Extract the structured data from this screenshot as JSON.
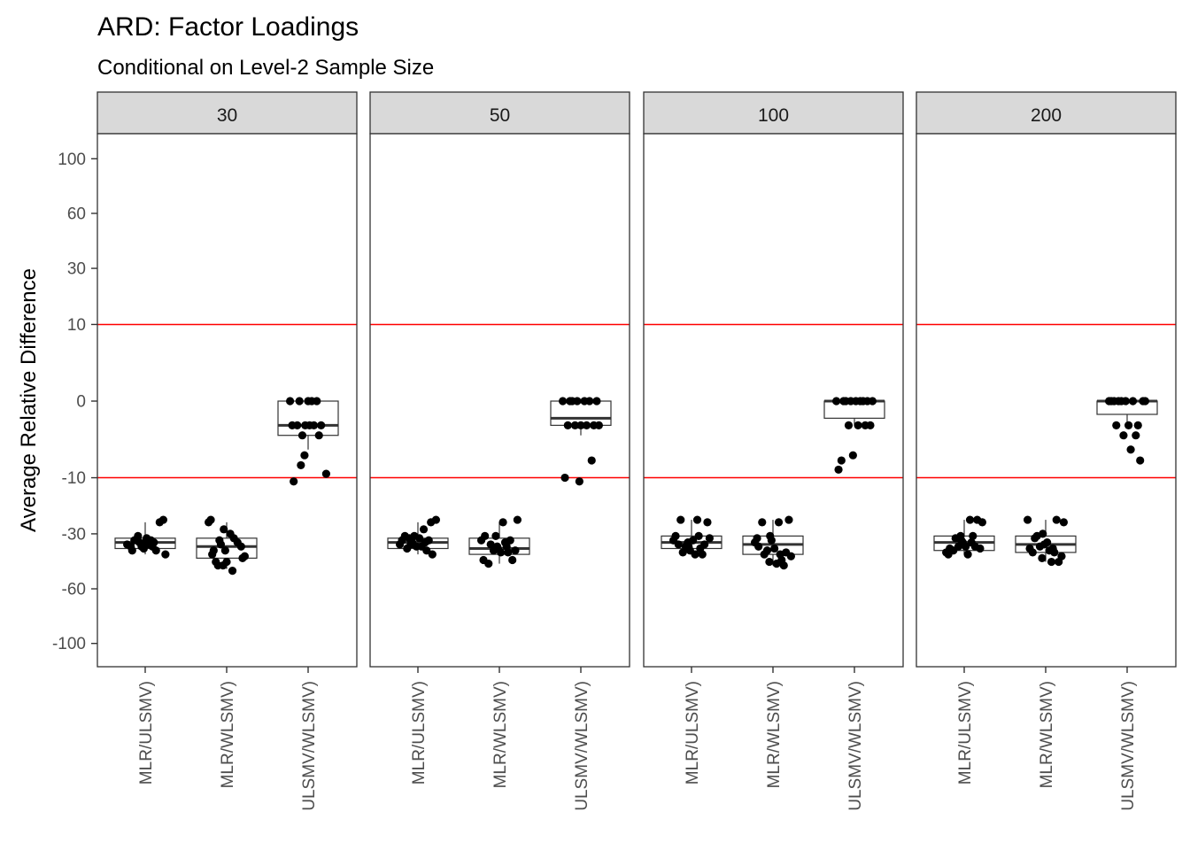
{
  "chart_data": {
    "type": "boxplot",
    "title": "ARD: Factor Loadings",
    "subtitle": "Conditional on Level-2 Sample Size",
    "ylabel": "Average Relative Difference",
    "xlabel": "",
    "y_transform": "signed_sqrt",
    "y_ticks": [
      -100,
      -60,
      -30,
      -10,
      0,
      10,
      30,
      60,
      100
    ],
    "y_tick_labels": [
      "-100",
      "-60",
      "-30",
      "-10",
      "0",
      "10",
      "30",
      "60",
      "100"
    ],
    "ylim": [
      -110,
      110
    ],
    "reference_lines": [
      {
        "y": 10,
        "color": "#ff0000"
      },
      {
        "y": -10,
        "color": "#ff0000"
      }
    ],
    "categories": [
      "MLR/ULSMV)",
      "MLR/WLSMV)",
      "ULSMV/WLSMV)"
    ],
    "facets": [
      {
        "label": "30",
        "boxes": [
          {
            "category": "MLR/ULSMV)",
            "q1": -37,
            "median": -34,
            "q3": -32,
            "whisker_low": -40,
            "whisker_high": -25,
            "points": [
              [
                0.75,
                -35
              ],
              [
                0.8,
                -36
              ],
              [
                0.85,
                -33
              ],
              [
                0.9,
                -31
              ],
              [
                0.92,
                -34
              ],
              [
                0.95,
                -36
              ],
              [
                0.98,
                -37
              ],
              [
                1.02,
                -32
              ],
              [
                1.05,
                -35
              ],
              [
                1.08,
                -33
              ],
              [
                1.1,
                -36
              ],
              [
                1.12,
                -34
              ],
              [
                1.15,
                -38
              ],
              [
                1.2,
                -25
              ],
              [
                1.25,
                -24
              ],
              [
                1.28,
                -40
              ],
              [
                0.82,
                -38
              ],
              [
                1.0,
                -34
              ]
            ]
          },
          {
            "category": "MLR/WLSMV)",
            "q1": -42,
            "median": -36,
            "q3": -32,
            "whisker_low": -48,
            "whisker_high": -25,
            "points": [
              [
                0.75,
                -25
              ],
              [
                0.78,
                -24
              ],
              [
                0.8,
                -40
              ],
              [
                0.82,
                -38
              ],
              [
                0.85,
                -44
              ],
              [
                0.88,
                -46
              ],
              [
                0.9,
                -33
              ],
              [
                0.92,
                -35
              ],
              [
                0.95,
                -46
              ],
              [
                0.98,
                -38
              ],
              [
                1.0,
                -44
              ],
              [
                1.05,
                -30
              ],
              [
                1.08,
                -49
              ],
              [
                1.1,
                -32
              ],
              [
                1.15,
                -34
              ],
              [
                1.2,
                -36
              ],
              [
                1.22,
                -42
              ],
              [
                1.25,
                -41
              ],
              [
                0.96,
                -28
              ]
            ]
          },
          {
            "category": "ULSMV/WLSMV)",
            "q1": -2,
            "median": -1,
            "q3": 0,
            "whisker_low": -4,
            "whisker_high": 0,
            "points": [
              [
                0.75,
                0
              ],
              [
                0.78,
                -1
              ],
              [
                0.8,
                -11
              ],
              [
                0.85,
                -1
              ],
              [
                0.88,
                0
              ],
              [
                0.9,
                -7
              ],
              [
                0.92,
                -2
              ],
              [
                0.95,
                -5
              ],
              [
                1.0,
                0
              ],
              [
                1.02,
                -1
              ],
              [
                1.05,
                0
              ],
              [
                1.08,
                -1
              ],
              [
                1.12,
                0
              ],
              [
                1.15,
                -2
              ],
              [
                1.18,
                -1
              ],
              [
                1.25,
                -9
              ],
              [
                0.96,
                -1
              ]
            ]
          }
        ]
      },
      {
        "label": "50",
        "boxes": [
          {
            "category": "MLR/ULSMV)",
            "q1": -37,
            "median": -34,
            "q3": -32,
            "whisker_low": -40,
            "whisker_high": -25,
            "points": [
              [
                0.75,
                -35
              ],
              [
                0.78,
                -33
              ],
              [
                0.82,
                -31
              ],
              [
                0.85,
                -37
              ],
              [
                0.88,
                -32
              ],
              [
                0.92,
                -34
              ],
              [
                0.95,
                -31
              ],
              [
                0.98,
                -36
              ],
              [
                1.02,
                -32
              ],
              [
                1.05,
                -36
              ],
              [
                1.08,
                -28
              ],
              [
                1.1,
                -34
              ],
              [
                1.12,
                -38
              ],
              [
                1.15,
                -33
              ],
              [
                1.18,
                -25
              ],
              [
                1.2,
                -40
              ],
              [
                1.25,
                -24
              ],
              [
                0.9,
                -35
              ]
            ]
          },
          {
            "category": "MLR/WLSMV)",
            "q1": -40,
            "median": -37,
            "q3": -32,
            "whisker_low": -45,
            "whisker_high": -25,
            "points": [
              [
                0.75,
                -33
              ],
              [
                0.78,
                -43
              ],
              [
                0.8,
                -31
              ],
              [
                0.85,
                -45
              ],
              [
                0.88,
                -35
              ],
              [
                0.92,
                -38
              ],
              [
                0.95,
                -31
              ],
              [
                0.98,
                -37
              ],
              [
                1.02,
                -39
              ],
              [
                1.05,
                -25
              ],
              [
                1.08,
                -34
              ],
              [
                1.1,
                -36
              ],
              [
                1.12,
                -39
              ],
              [
                1.15,
                -33
              ],
              [
                1.18,
                -43
              ],
              [
                1.22,
                -38
              ],
              [
                1.25,
                -24
              ],
              [
                0.97,
                -36
              ]
            ]
          },
          {
            "category": "ULSMV/WLSMV)",
            "q1": -1,
            "median": -0.5,
            "q3": 0,
            "whisker_low": -2,
            "whisker_high": 0,
            "points": [
              [
                0.75,
                0
              ],
              [
                0.78,
                -10
              ],
              [
                0.82,
                -1
              ],
              [
                0.85,
                0
              ],
              [
                0.88,
                0
              ],
              [
                0.92,
                -1
              ],
              [
                0.95,
                0
              ],
              [
                0.98,
                -11
              ],
              [
                1.0,
                -1
              ],
              [
                1.05,
                0
              ],
              [
                1.08,
                -1
              ],
              [
                1.12,
                0
              ],
              [
                1.15,
                -6
              ],
              [
                1.18,
                -1
              ],
              [
                1.22,
                0
              ],
              [
                1.25,
                -1
              ]
            ]
          }
        ]
      },
      {
        "label": "100",
        "boxes": [
          {
            "category": "MLR/ULSMV)",
            "q1": -37,
            "median": -34,
            "q3": -31,
            "whisker_low": -40,
            "whisker_high": -24,
            "points": [
              [
                0.75,
                -33
              ],
              [
                0.78,
                -31
              ],
              [
                0.82,
                -35
              ],
              [
                0.85,
                -24
              ],
              [
                0.88,
                -39
              ],
              [
                0.92,
                -36
              ],
              [
                0.95,
                -34
              ],
              [
                0.98,
                -38
              ],
              [
                1.02,
                -33
              ],
              [
                1.05,
                -40
              ],
              [
                1.08,
                -24
              ],
              [
                1.1,
                -31
              ],
              [
                1.12,
                -37
              ],
              [
                1.15,
                -40
              ],
              [
                1.18,
                -35
              ],
              [
                1.22,
                -25
              ],
              [
                1.25,
                -32
              ],
              [
                0.96,
                -36
              ]
            ]
          },
          {
            "category": "MLR/WLSMV)",
            "q1": -40,
            "median": -35,
            "q3": -31,
            "whisker_low": -46,
            "whisker_high": -24,
            "points": [
              [
                0.75,
                -34
              ],
              [
                0.78,
                -32
              ],
              [
                0.8,
                -36
              ],
              [
                0.85,
                -25
              ],
              [
                0.88,
                -40
              ],
              [
                0.92,
                -38
              ],
              [
                0.95,
                -44
              ],
              [
                0.98,
                -33
              ],
              [
                1.02,
                -37
              ],
              [
                1.05,
                -45
              ],
              [
                1.08,
                -25
              ],
              [
                1.1,
                -40
              ],
              [
                1.12,
                -43
              ],
              [
                1.15,
                -46
              ],
              [
                1.18,
                -39
              ],
              [
                1.22,
                -24
              ],
              [
                1.25,
                -41
              ],
              [
                0.96,
                -31
              ]
            ]
          },
          {
            "category": "ULSMV/WLSMV)",
            "q1": -0.5,
            "median": 0,
            "q3": 0,
            "whisker_low": -1,
            "whisker_high": 0,
            "points": [
              [
                0.75,
                0
              ],
              [
                0.78,
                -8
              ],
              [
                0.82,
                -6
              ],
              [
                0.85,
                0
              ],
              [
                0.88,
                0
              ],
              [
                0.92,
                -1
              ],
              [
                0.95,
                0
              ],
              [
                0.98,
                -5
              ],
              [
                1.02,
                0
              ],
              [
                1.05,
                -1
              ],
              [
                1.08,
                0
              ],
              [
                1.12,
                0
              ],
              [
                1.15,
                -1
              ],
              [
                1.18,
                0
              ],
              [
                1.22,
                -1
              ],
              [
                1.25,
                0
              ]
            ]
          }
        ]
      },
      {
        "label": "200",
        "boxes": [
          {
            "category": "MLR/ULSMV)",
            "q1": -38,
            "median": -34,
            "q3": -31,
            "whisker_low": -40,
            "whisker_high": -24,
            "points": [
              [
                0.75,
                -39
              ],
              [
                0.78,
                -40
              ],
              [
                0.8,
                -37
              ],
              [
                0.85,
                -38
              ],
              [
                0.88,
                -32
              ],
              [
                0.92,
                -36
              ],
              [
                0.95,
                -31
              ],
              [
                0.98,
                -34
              ],
              [
                1.02,
                -36
              ],
              [
                1.05,
                -40
              ],
              [
                1.08,
                -24
              ],
              [
                1.1,
                -34
              ],
              [
                1.12,
                -31
              ],
              [
                1.15,
                -36
              ],
              [
                1.18,
                -24
              ],
              [
                1.22,
                -37
              ],
              [
                1.25,
                -25
              ],
              [
                0.96,
                -33
              ]
            ]
          },
          {
            "category": "MLR/WLSMV)",
            "q1": -39,
            "median": -35,
            "q3": -31,
            "whisker_low": -44,
            "whisker_high": -24,
            "points": [
              [
                0.75,
                -24
              ],
              [
                0.78,
                -37
              ],
              [
                0.82,
                -39
              ],
              [
                0.85,
                -32
              ],
              [
                0.88,
                -31
              ],
              [
                0.92,
                -36
              ],
              [
                0.95,
                -42
              ],
              [
                0.98,
                -35
              ],
              [
                1.02,
                -34
              ],
              [
                1.05,
                -38
              ],
              [
                1.08,
                -44
              ],
              [
                1.1,
                -37
              ],
              [
                1.12,
                -39
              ],
              [
                1.15,
                -24
              ],
              [
                1.18,
                -44
              ],
              [
                1.22,
                -41
              ],
              [
                1.25,
                -25
              ],
              [
                0.96,
                -30
              ]
            ]
          },
          {
            "category": "ULSMV/WLSMV)",
            "q1": -0.3,
            "median": 0,
            "q3": 0,
            "whisker_low": -1,
            "whisker_high": 0,
            "points": [
              [
                0.75,
                0
              ],
              [
                0.78,
                0
              ],
              [
                0.82,
                0
              ],
              [
                0.85,
                -1
              ],
              [
                0.88,
                0
              ],
              [
                0.92,
                0
              ],
              [
                0.95,
                -2
              ],
              [
                0.98,
                0
              ],
              [
                1.02,
                -1
              ],
              [
                1.05,
                -4
              ],
              [
                1.08,
                0
              ],
              [
                1.12,
                -2
              ],
              [
                1.15,
                -1
              ],
              [
                1.18,
                -6
              ],
              [
                1.22,
                0
              ],
              [
                1.25,
                0
              ]
            ]
          }
        ]
      }
    ],
    "colors": {
      "reference_line": "#ff0000",
      "point": "#000000",
      "strip_fill": "#d9d9d9",
      "panel_border": "#333333",
      "tick_text": "#4d4d4d"
    },
    "grid": false,
    "legend": "none"
  }
}
